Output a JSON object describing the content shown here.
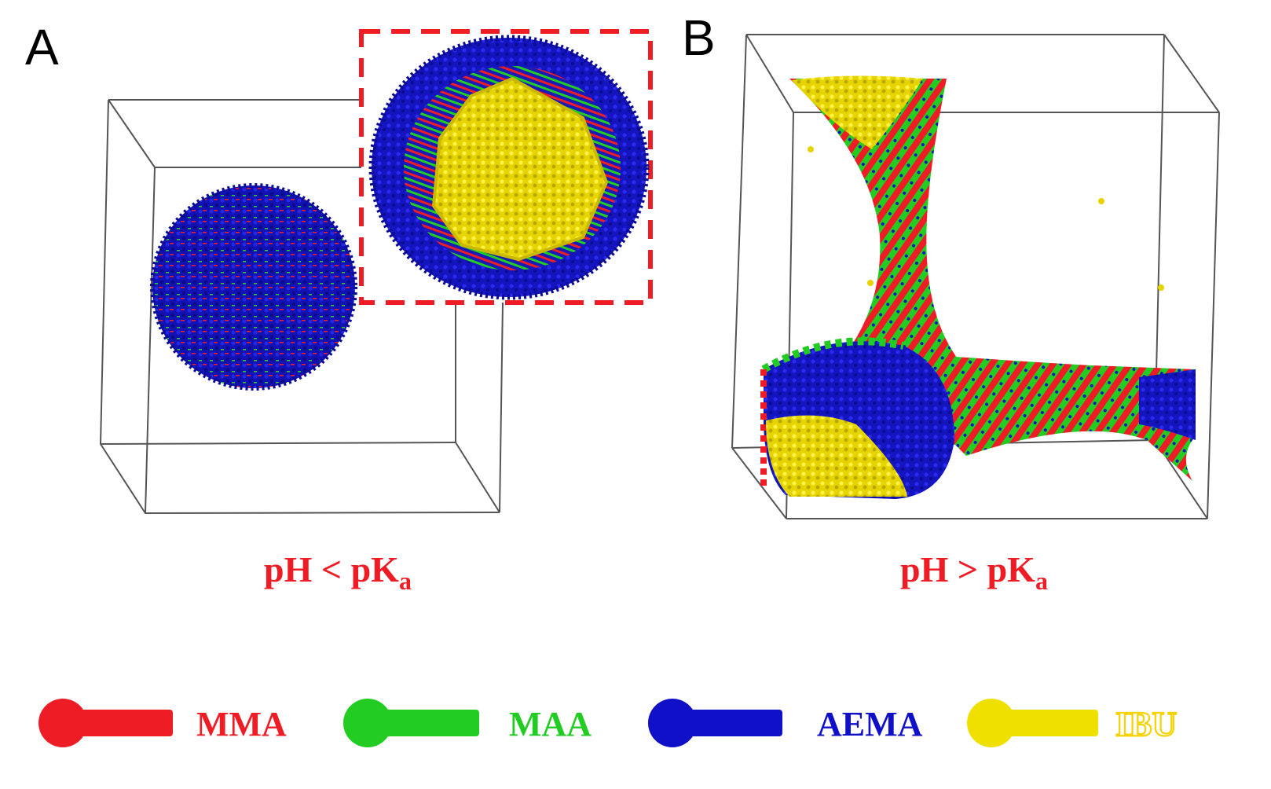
{
  "panels": [
    {
      "letter": "A",
      "condition": {
        "main": "pH < pK",
        "sub": "a"
      }
    },
    {
      "letter": "B",
      "condition": {
        "main": "pH > pK",
        "sub": "a"
      }
    }
  ],
  "legend": [
    {
      "label": "MMA",
      "color": "#ee1c25"
    },
    {
      "label": "MAA",
      "color": "#22cc22"
    },
    {
      "label": "AEMA",
      "color": "#1010c8"
    },
    {
      "label": "IBU",
      "color": "#f0e000"
    }
  ],
  "colors": {
    "dash_box": "#ee1c25",
    "ibu_label": "#f5d200"
  }
}
